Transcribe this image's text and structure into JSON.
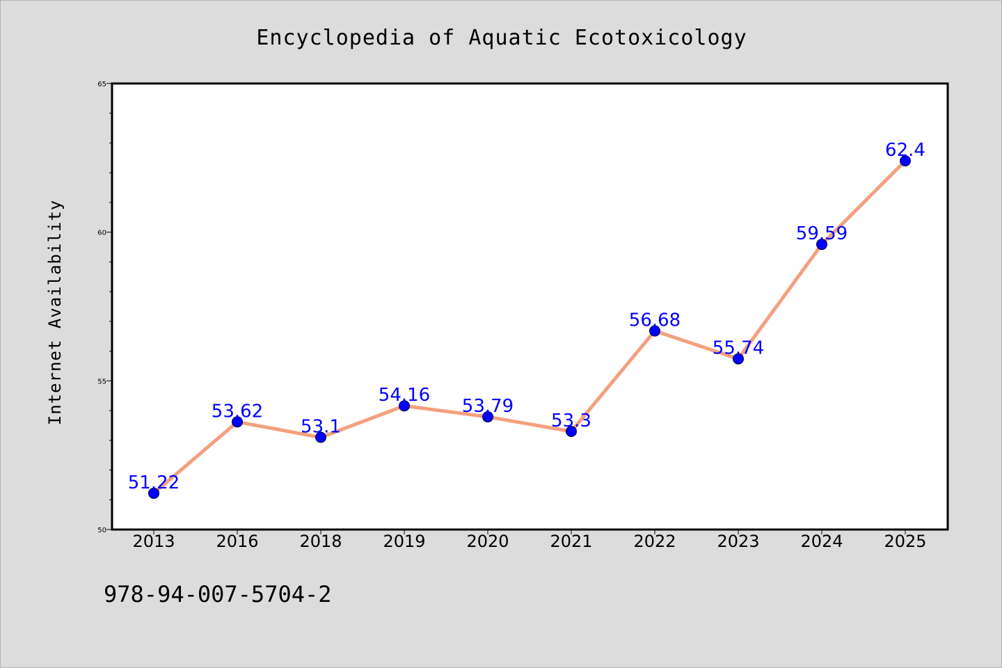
{
  "chart_data": {
    "type": "line",
    "title": "Encyclopedia of Aquatic Ecotoxicology",
    "xlabel": "",
    "ylabel": "Internet Availability",
    "categories": [
      "2013",
      "2016",
      "2018",
      "2019",
      "2020",
      "2021",
      "2022",
      "2023",
      "2024",
      "2025"
    ],
    "series": [
      {
        "values": [
          51.22,
          53.62,
          53.1,
          54.16,
          53.79,
          53.3,
          56.68,
          55.74,
          59.59,
          62.4
        ],
        "data_labels": [
          "51.22",
          "53.62",
          "53.1",
          "54.16",
          "53.79",
          "53.3",
          "56.68",
          "55.74",
          "59.59",
          "62.4"
        ]
      }
    ],
    "ylim": [
      50,
      65
    ],
    "y_ticks": [
      50,
      55,
      60,
      65
    ],
    "y_tick_labels": [
      "50",
      "55",
      "60",
      "65"
    ],
    "grid": false,
    "legend": "none",
    "colors": {
      "line": "#f4a07e",
      "marker": "#0000ff",
      "data_label": "#0000ff",
      "plot_background": "#ffffff",
      "page_background": "#dcdcdc"
    }
  },
  "footer": {
    "code": "978-94-007-5704-2"
  }
}
